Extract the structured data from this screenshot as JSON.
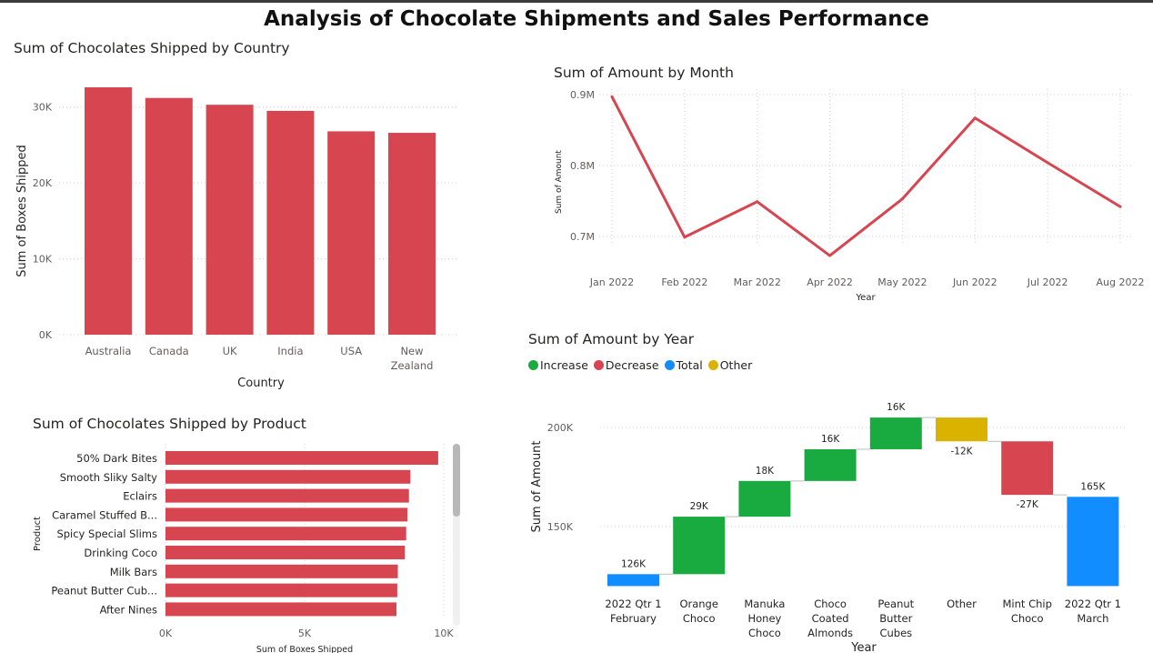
{
  "page": {
    "title": "Analysis of Chocolate Shipments and Sales Performance"
  },
  "colors": {
    "bar": "#D64550",
    "increase": "#1AAB40",
    "decrease": "#D64550",
    "total": "#118DFF",
    "other": "#D9B300",
    "grid": "#d0d0d0",
    "axis_text": "#605e5c"
  },
  "charts": {
    "country": {
      "title": "Sum of Chocolates Shipped by Country"
    },
    "month": {
      "title": "Sum of Amount by Month"
    },
    "product": {
      "title": "Sum of Chocolates Shipped by Product"
    },
    "year": {
      "title": "Sum of Amount by Year"
    }
  },
  "legend": [
    {
      "label": "Increase",
      "color": "#1AAB40"
    },
    {
      "label": "Decrease",
      "color": "#D64550"
    },
    {
      "label": "Total",
      "color": "#118DFF"
    },
    {
      "label": "Other",
      "color": "#D9B300"
    }
  ],
  "chart_data": [
    {
      "id": "country",
      "type": "bar",
      "title": "Sum of Chocolates Shipped by Country",
      "xlabel": "Country",
      "ylabel": "Sum of Boxes Shipped",
      "categories": [
        [
          "Australia"
        ],
        [
          "Canada"
        ],
        [
          "UK"
        ],
        [
          "India"
        ],
        [
          "USA"
        ],
        [
          "New",
          "Zealand"
        ]
      ],
      "values": [
        32600,
        31200,
        30300,
        29500,
        26800,
        26600
      ],
      "yticks": [
        {
          "v": 0,
          "label": "0K"
        },
        {
          "v": 10000,
          "label": "10K"
        },
        {
          "v": 20000,
          "label": "20K"
        },
        {
          "v": 30000,
          "label": "30K"
        }
      ],
      "ylim": [
        0,
        32600
      ],
      "grid": true
    },
    {
      "id": "month",
      "type": "line",
      "title": "Sum of Amount by Month",
      "xlabel": "Year",
      "ylabel": "Sum of Amount",
      "x": [
        "Jan 2022",
        "Feb 2022",
        "Mar 2022",
        "Apr 2022",
        "May 2022",
        "Jun 2022",
        "Jul 2022",
        "Aug 2022"
      ],
      "values": [
        897000,
        699000,
        749000,
        673000,
        753000,
        867000,
        804000,
        742000
      ],
      "yticks": [
        {
          "v": 700000,
          "label": "0.7M"
        },
        {
          "v": 800000,
          "label": "0.8M"
        },
        {
          "v": 900000,
          "label": "0.9M"
        }
      ],
      "ylim": [
        650000,
        900000
      ],
      "grid": true
    },
    {
      "id": "product",
      "type": "bar",
      "orientation": "horizontal",
      "title": "Sum of Chocolates Shipped by Product",
      "xlabel": "Sum of Boxes Shipped",
      "ylabel": "Product",
      "categories": [
        "50% Dark Bites",
        "Smooth Sliky Salty",
        "Eclairs",
        "Caramel Stuffed B...",
        "Spicy Special Slims",
        "Drinking Coco",
        "Milk Bars",
        "Peanut Butter Cub...",
        "After Nines"
      ],
      "values": [
        9800,
        8800,
        8750,
        8700,
        8650,
        8600,
        8350,
        8330,
        8300
      ],
      "xticks": [
        {
          "v": 0,
          "label": "0K"
        },
        {
          "v": 5000,
          "label": "5K"
        },
        {
          "v": 10000,
          "label": "10K"
        }
      ],
      "xlim": [
        0,
        10000
      ],
      "grid": true
    },
    {
      "id": "year",
      "type": "waterfall",
      "title": "Sum of Amount by Year",
      "xlabel": "Year",
      "ylabel": "Sum of Amount",
      "steps": [
        {
          "label": [
            "2022 Qtr 1",
            "February"
          ],
          "kind": "total",
          "start": 120000,
          "end": 126000,
          "text": "126K"
        },
        {
          "label": [
            "Orange",
            "Choco"
          ],
          "kind": "increase",
          "start": 126000,
          "end": 155000,
          "text": "29K"
        },
        {
          "label": [
            "Manuka",
            "Honey",
            "Choco"
          ],
          "kind": "increase",
          "start": 155000,
          "end": 173000,
          "text": "18K"
        },
        {
          "label": [
            "Choco",
            "Coated",
            "Almonds"
          ],
          "kind": "increase",
          "start": 173000,
          "end": 189000,
          "text": "16K"
        },
        {
          "label": [
            "Peanut",
            "Butter",
            "Cubes"
          ],
          "kind": "increase",
          "start": 189000,
          "end": 205000,
          "text": "16K"
        },
        {
          "label": [
            "Other"
          ],
          "kind": "other",
          "start": 205000,
          "end": 193000,
          "text": "-12K"
        },
        {
          "label": [
            "Mint Chip",
            "Choco"
          ],
          "kind": "decrease",
          "start": 193000,
          "end": 166000,
          "text": "-27K"
        },
        {
          "label": [
            "2022 Qtr 1",
            "March"
          ],
          "kind": "total",
          "start": 120000,
          "end": 165000,
          "text": "165K"
        }
      ],
      "yticks": [
        {
          "v": 150000,
          "label": "150K"
        },
        {
          "v": 200000,
          "label": "200K"
        }
      ],
      "ylim": [
        120000,
        205000
      ],
      "grid": true
    }
  ]
}
